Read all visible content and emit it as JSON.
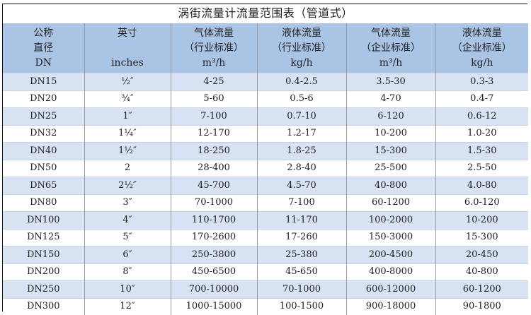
{
  "title": "涡街流量计流量范围表（管道式）",
  "headers": [
    [
      "公称",
      "直径",
      "DN"
    ],
    [
      "英寸",
      "",
      "inches"
    ],
    [
      "气体流量",
      "（行业标准）",
      "m³/h"
    ],
    [
      "液体流量",
      "（行业标准）",
      "kg/h"
    ],
    [
      "气体流量",
      "（企业标准）",
      "m³/h"
    ],
    [
      "液体流量",
      "（企业标准）",
      "kg/h"
    ]
  ],
  "rows": [
    [
      "DN15",
      "½″",
      "4-25",
      "0.4-2.5",
      "3.5-30",
      "0.3-3"
    ],
    [
      "DN20",
      "¾″",
      "5-60",
      "0.5-6",
      "4-70",
      "0.4-7"
    ],
    [
      "DN25",
      "1″",
      "7-100",
      "0.7-10",
      "6-120",
      "0.6-12"
    ],
    [
      "DN32",
      "1¼″",
      "12-170",
      "1.2-17",
      "10-200",
      "1.0-20"
    ],
    [
      "DN40",
      "1½″",
      "18-250",
      "1.8-25",
      "15-300",
      "1.5-30"
    ],
    [
      "DN50",
      "2",
      "28-400",
      "2.8-40",
      "25-500",
      "2.5-50"
    ],
    [
      "DN65",
      "2½″",
      "45-700",
      "4.5-70",
      "40-800",
      "4.0-80"
    ],
    [
      "DN80",
      "3″",
      "70-1000",
      "7-100",
      "60-1200",
      "6.0-120"
    ],
    [
      "DN100",
      "4″",
      "110-1700",
      "11-170",
      "100-2000",
      "10-200"
    ],
    [
      "DN125",
      "5″",
      "170-2600",
      "17-260",
      "150-3000",
      "15-300"
    ],
    [
      "DN150",
      "6″",
      "250-3800",
      "25-380",
      "200-4500",
      "20-450"
    ],
    [
      "DN200",
      "8″",
      "450-6500",
      "45-650",
      "400-8000",
      "40-800"
    ],
    [
      "DN250",
      "10″",
      "700-10000",
      "70-1000",
      "600-12000",
      "60-1200"
    ],
    [
      "DN300",
      "12″",
      "1000-15000",
      "100-1500",
      "900-18000",
      "90-1800"
    ]
  ],
  "colors": {
    "header_bg": "#aac4e6",
    "row_alt_bg": "#d7e2f3"
  }
}
